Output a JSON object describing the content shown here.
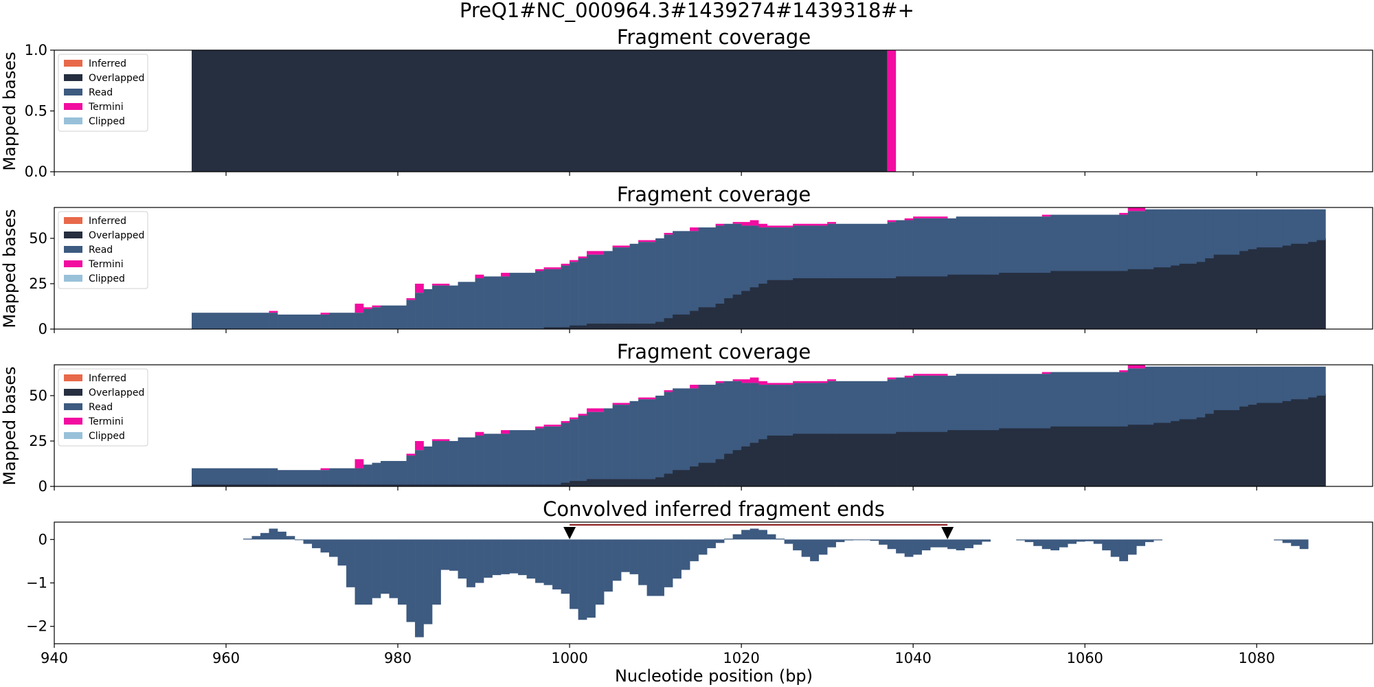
{
  "figure": {
    "suptitle": "PreQ1#NC_000964.3#1439274#1439318#+",
    "xlabel": "Nucleotide position (bp)"
  },
  "colors": {
    "inferred": "#e8694a",
    "overlapped": "#262f40",
    "read": "#3d5a80",
    "termini": "#f20ca0",
    "clipped": "#98c1d9",
    "span_line": "#8b1a1a",
    "marker": "#000000"
  },
  "chart_data": [
    {
      "type": "area",
      "title": "Fragment coverage",
      "ylabel": "Mapped bases",
      "xlim": [
        940,
        1093.5
      ],
      "ylim": [
        0,
        1
      ],
      "yticks": [
        "0.0",
        "0.5",
        "1.0"
      ],
      "ytick_values": [
        0,
        0.5,
        1
      ],
      "legend": [
        "Inferred",
        "Overlapped",
        "Read",
        "Termini",
        "Clipped"
      ],
      "legend_position": "top-left",
      "overlapped": {
        "x_start": 956,
        "x_end": 1037,
        "value": 1
      },
      "termini": {
        "x_start": 1037,
        "x_end": 1038,
        "value": 1
      }
    },
    {
      "type": "area",
      "title": "Fragment coverage",
      "ylabel": "Mapped bases",
      "xlim": [
        940,
        1093.5
      ],
      "ylim": [
        0,
        67
      ],
      "yticks": [
        "0",
        "25",
        "50"
      ],
      "ytick_values": [
        0,
        25,
        50
      ],
      "legend": [
        "Inferred",
        "Overlapped",
        "Read",
        "Termini",
        "Clipped"
      ],
      "legend_position": "top-left",
      "x_start": 956,
      "x_end": 1088,
      "keys": [
        956,
        965,
        966,
        971,
        972,
        975,
        976,
        977,
        978,
        981,
        982,
        983,
        984,
        986,
        987,
        989,
        990,
        992,
        993,
        996,
        997,
        999,
        1000,
        1001,
        1002,
        1004,
        1005,
        1007,
        1008,
        1010,
        1011,
        1012,
        1014,
        1015,
        1017,
        1018,
        1019,
        1020,
        1021,
        1022,
        1023,
        1025,
        1026,
        1030,
        1031,
        1037,
        1038,
        1039,
        1040,
        1044,
        1045,
        1049,
        1050,
        1055,
        1056,
        1064,
        1065,
        1067,
        1068,
        1070,
        1071,
        1073,
        1074,
        1075,
        1078,
        1079,
        1080,
        1083,
        1084,
        1086,
        1087,
        1088
      ],
      "read_top": [
        9,
        9,
        8,
        8,
        9,
        9,
        11,
        12,
        13,
        16,
        20,
        22,
        24,
        24,
        26,
        28,
        29,
        29,
        31,
        32,
        33,
        35,
        37,
        39,
        41,
        43,
        45,
        47,
        48,
        50,
        52,
        54,
        54,
        56,
        57,
        58,
        58,
        57,
        57,
        56,
        56,
        56,
        57,
        58,
        58,
        59,
        60,
        60,
        61,
        61,
        62,
        62,
        62,
        62,
        63,
        63,
        65,
        66,
        66,
        66,
        66,
        66,
        66,
        66,
        66,
        66,
        66,
        66,
        66,
        66,
        66,
        66
      ],
      "termini_top": [
        9,
        10,
        8,
        9,
        9,
        14,
        12,
        13,
        13,
        17,
        25,
        22,
        25,
        24,
        26,
        30,
        29,
        31,
        31,
        33,
        34,
        36,
        38,
        40,
        43,
        43,
        46,
        47,
        49,
        50,
        53,
        54,
        56,
        56,
        58,
        58,
        59,
        59,
        60,
        58,
        57,
        57,
        58,
        59,
        58,
        60,
        60,
        61,
        62,
        61,
        62,
        62,
        62,
        63,
        63,
        64,
        67,
        66,
        66,
        66,
        66,
        66,
        66,
        66,
        66,
        66,
        66,
        66,
        66,
        66,
        66,
        66
      ],
      "overlapped_top": [
        0,
        0,
        0,
        0,
        0,
        0,
        0,
        0,
        0,
        0,
        0,
        0,
        0,
        0,
        0,
        0,
        0,
        0,
        0,
        0,
        1,
        1,
        2,
        2,
        3,
        3,
        3,
        3,
        3,
        4,
        6,
        8,
        10,
        12,
        14,
        17,
        19,
        21,
        23,
        25,
        27,
        27,
        28,
        28,
        28,
        28,
        29,
        29,
        29,
        30,
        30,
        30,
        31,
        31,
        32,
        32,
        33,
        33,
        34,
        35,
        36,
        37,
        39,
        41,
        43,
        44,
        45,
        46,
        47,
        48,
        49,
        50
      ]
    },
    {
      "type": "area",
      "title": "Fragment coverage",
      "ylabel": "Mapped bases",
      "xlim": [
        940,
        1093.5
      ],
      "ylim": [
        0,
        67
      ],
      "yticks": [
        "0",
        "25",
        "50"
      ],
      "ytick_values": [
        0,
        25,
        50
      ],
      "legend": [
        "Inferred",
        "Overlapped",
        "Read",
        "Termini",
        "Clipped"
      ],
      "legend_position": "top-left",
      "x_start": 956,
      "x_end": 1088,
      "keys": [
        956,
        965,
        966,
        971,
        972,
        975,
        976,
        977,
        978,
        981,
        982,
        983,
        984,
        986,
        987,
        989,
        990,
        992,
        993,
        996,
        997,
        999,
        1000,
        1001,
        1002,
        1004,
        1005,
        1007,
        1008,
        1010,
        1011,
        1012,
        1014,
        1015,
        1017,
        1018,
        1019,
        1020,
        1021,
        1022,
        1023,
        1025,
        1026,
        1030,
        1031,
        1037,
        1038,
        1039,
        1040,
        1044,
        1045,
        1049,
        1050,
        1055,
        1056,
        1064,
        1065,
        1067,
        1068,
        1070,
        1071,
        1073,
        1074,
        1075,
        1078,
        1079,
        1080,
        1083,
        1084,
        1086,
        1087,
        1088
      ],
      "read_top": [
        10,
        10,
        9,
        9,
        10,
        10,
        12,
        13,
        14,
        17,
        20,
        22,
        25,
        25,
        27,
        28,
        29,
        29,
        31,
        32,
        33,
        35,
        37,
        39,
        41,
        43,
        45,
        47,
        48,
        50,
        52,
        54,
        54,
        56,
        57,
        58,
        58,
        57,
        57,
        56,
        56,
        56,
        57,
        58,
        58,
        59,
        60,
        60,
        61,
        61,
        62,
        62,
        62,
        62,
        63,
        63,
        65,
        66,
        66,
        66,
        66,
        66,
        66,
        66,
        66,
        66,
        66,
        66,
        66,
        66,
        66,
        66
      ],
      "termini_top": [
        10,
        10,
        9,
        10,
        10,
        15,
        12,
        13,
        14,
        18,
        25,
        22,
        26,
        25,
        27,
        30,
        29,
        31,
        31,
        33,
        34,
        36,
        38,
        40,
        43,
        43,
        46,
        47,
        49,
        50,
        53,
        54,
        56,
        56,
        58,
        58,
        59,
        59,
        60,
        58,
        57,
        57,
        58,
        59,
        58,
        60,
        60,
        61,
        62,
        61,
        62,
        62,
        62,
        63,
        63,
        64,
        67,
        66,
        66,
        66,
        66,
        66,
        66,
        66,
        66,
        66,
        66,
        66,
        66,
        66,
        66,
        66
      ],
      "overlapped_top": [
        1,
        1,
        1,
        1,
        1,
        1,
        1,
        1,
        1,
        1,
        1,
        1,
        1,
        1,
        1,
        1,
        1,
        1,
        1,
        1,
        1,
        2,
        3,
        3,
        4,
        4,
        4,
        4,
        4,
        5,
        7,
        9,
        11,
        13,
        15,
        18,
        20,
        22,
        24,
        26,
        28,
        28,
        29,
        29,
        29,
        29,
        30,
        30,
        30,
        31,
        31,
        31,
        32,
        32,
        33,
        33,
        34,
        34,
        35,
        36,
        37,
        38,
        40,
        42,
        44,
        45,
        46,
        47,
        48,
        49,
        50,
        51
      ]
    },
    {
      "type": "bar",
      "title": "Convolved inferred fragment ends",
      "ylabel": "",
      "xlim": [
        940,
        1093.5
      ],
      "ylim": [
        -2.4,
        0.4
      ],
      "yticks": [
        "−2",
        "−1",
        "0"
      ],
      "ytick_values": [
        -2,
        -1,
        0
      ],
      "xticks": [
        "940",
        "960",
        "980",
        "1000",
        "1020",
        "1040",
        "1060",
        "1080"
      ],
      "xtick_values": [
        940,
        960,
        980,
        1000,
        1020,
        1040,
        1060,
        1080
      ],
      "markers": [
        1000,
        1044
      ],
      "span": [
        1000,
        1044
      ],
      "x": [
        962,
        963,
        964,
        965,
        966,
        967,
        968,
        969,
        970,
        971,
        972,
        973,
        974,
        975,
        976,
        977,
        978,
        979,
        980,
        981,
        982,
        983,
        984,
        985,
        986,
        987,
        988,
        989,
        990,
        991,
        992,
        993,
        994,
        995,
        996,
        997,
        998,
        999,
        1000,
        1001,
        1002,
        1003,
        1004,
        1005,
        1006,
        1007,
        1008,
        1009,
        1010,
        1011,
        1012,
        1013,
        1014,
        1015,
        1016,
        1017,
        1018,
        1019,
        1020,
        1021,
        1022,
        1023,
        1024,
        1025,
        1026,
        1027,
        1028,
        1029,
        1030,
        1031,
        1032,
        1033,
        1034,
        1035,
        1036,
        1037,
        1038,
        1039,
        1040,
        1041,
        1042,
        1043,
        1044,
        1045,
        1046,
        1047,
        1048,
        1052,
        1053,
        1054,
        1055,
        1056,
        1057,
        1058,
        1059,
        1060,
        1061,
        1062,
        1063,
        1064,
        1065,
        1066,
        1067,
        1068,
        1082,
        1083,
        1084,
        1085
      ],
      "values": [
        0.02,
        0.08,
        0.15,
        0.25,
        0.18,
        0.08,
        0,
        -0.1,
        -0.2,
        -0.3,
        -0.4,
        -0.6,
        -1.1,
        -1.5,
        -1.5,
        -1.35,
        -1.25,
        -1.35,
        -1.5,
        -1.9,
        -2.25,
        -1.95,
        -1.5,
        -0.7,
        -0.72,
        -0.9,
        -1.1,
        -1.0,
        -0.88,
        -0.82,
        -0.8,
        -0.78,
        -0.82,
        -0.9,
        -1.0,
        -1.05,
        -1.15,
        -1.25,
        -1.6,
        -1.85,
        -1.8,
        -1.5,
        -1.2,
        -0.95,
        -0.75,
        -0.8,
        -1.05,
        -1.3,
        -1.3,
        -1.1,
        -0.9,
        -0.7,
        -0.5,
        -0.35,
        -0.2,
        -0.08,
        0.02,
        0.12,
        0.22,
        0.25,
        0.22,
        0.12,
        0.02,
        -0.1,
        -0.25,
        -0.4,
        -0.5,
        -0.35,
        -0.18,
        -0.06,
        -0.02,
        0,
        0,
        -0.03,
        -0.12,
        -0.22,
        -0.32,
        -0.4,
        -0.35,
        -0.25,
        -0.18,
        -0.18,
        -0.22,
        -0.25,
        -0.2,
        -0.12,
        -0.05,
        -0.02,
        -0.06,
        -0.15,
        -0.22,
        -0.25,
        -0.18,
        -0.1,
        -0.05,
        -0.04,
        -0.1,
        -0.25,
        -0.4,
        -0.5,
        -0.35,
        -0.15,
        -0.06,
        -0.02,
        -0.02,
        -0.08,
        -0.15,
        -0.22
      ]
    }
  ]
}
